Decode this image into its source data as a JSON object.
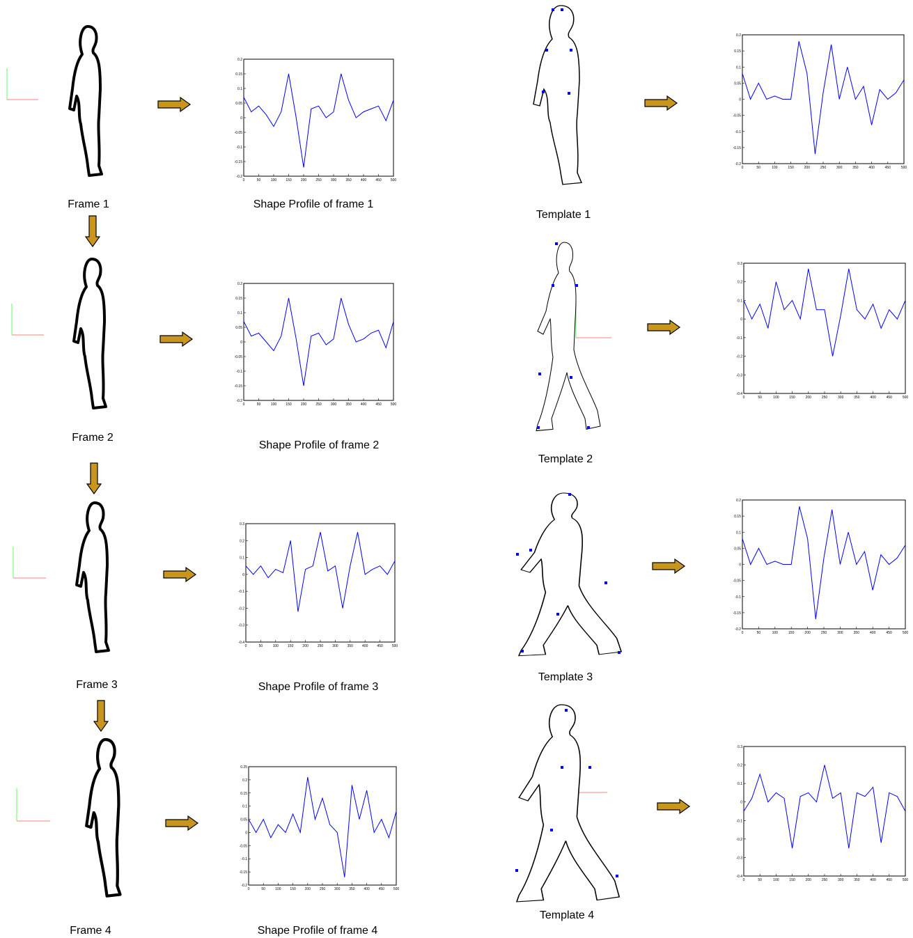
{
  "frames": [
    {
      "label": "Frame 1",
      "caption": "Shape Profile of frame 1"
    },
    {
      "label": "Frame 2",
      "caption": "Shape Profile of frame 2"
    },
    {
      "label": "Frame 3",
      "caption": "Shape Profile of frame 3"
    },
    {
      "label": "Frame 4",
      "caption": "Shape Profile of frame 4"
    }
  ],
  "templates": [
    {
      "label": "Template 1"
    },
    {
      "label": "Template 2"
    },
    {
      "label": "Template 3"
    },
    {
      "label": "Template 4"
    }
  ],
  "chart_data": [
    {
      "type": "line",
      "color": "#0000ff",
      "x": [
        0,
        25,
        50,
        75,
        100,
        125,
        150,
        175,
        200,
        225,
        250,
        275,
        300,
        325,
        350,
        375,
        400,
        425,
        450,
        475,
        500
      ],
      "values": [
        0.07,
        0.02,
        0.04,
        0.01,
        -0.03,
        0.02,
        0.15,
        0.0,
        -0.17,
        0.03,
        0.04,
        0.0,
        0.02,
        0.15,
        0.06,
        0.0,
        0.02,
        0.03,
        0.04,
        -0.01,
        0.06
      ],
      "xlim": [
        0,
        500
      ],
      "xticks": [
        0,
        50,
        100,
        150,
        200,
        250,
        300,
        350,
        400,
        450,
        500
      ],
      "ylim": [
        -0.2,
        0.2
      ],
      "yticks": [
        -0.2,
        -0.15,
        -0.1,
        -0.05,
        0,
        0.05,
        0.1,
        0.15,
        0.2
      ]
    },
    {
      "type": "line",
      "color": "#0000ff",
      "x": [
        0,
        25,
        50,
        75,
        100,
        125,
        150,
        175,
        200,
        225,
        250,
        275,
        300,
        325,
        350,
        375,
        400,
        425,
        450,
        475,
        500
      ],
      "values": [
        0.07,
        0.02,
        0.03,
        0.0,
        -0.03,
        0.02,
        0.15,
        0.01,
        -0.15,
        0.02,
        0.03,
        -0.01,
        0.01,
        0.15,
        0.06,
        0.0,
        0.01,
        0.03,
        0.04,
        -0.02,
        0.07
      ],
      "xlim": [
        0,
        500
      ],
      "xticks": [
        0,
        50,
        100,
        150,
        200,
        250,
        300,
        350,
        400,
        450,
        500
      ],
      "ylim": [
        -0.2,
        0.2
      ],
      "yticks": [
        -0.2,
        -0.15,
        -0.1,
        -0.05,
        0,
        0.05,
        0.1,
        0.15,
        0.2
      ]
    },
    {
      "type": "line",
      "color": "#0000ff",
      "x": [
        0,
        25,
        50,
        75,
        100,
        125,
        150,
        175,
        200,
        225,
        250,
        275,
        300,
        325,
        350,
        375,
        400,
        425,
        450,
        475,
        500
      ],
      "values": [
        0.05,
        0.0,
        0.05,
        -0.02,
        0.03,
        0.01,
        0.2,
        -0.22,
        0.03,
        0.05,
        0.25,
        0.02,
        0.05,
        -0.2,
        0.05,
        0.25,
        0.0,
        0.03,
        0.05,
        0.0,
        0.08
      ],
      "xlim": [
        0,
        500
      ],
      "xticks": [
        0,
        50,
        100,
        150,
        200,
        250,
        300,
        350,
        400,
        450,
        500
      ],
      "ylim": [
        -0.4,
        0.3
      ],
      "yticks": [
        -0.4,
        -0.3,
        -0.2,
        -0.1,
        0,
        0.1,
        0.2,
        0.3
      ]
    },
    {
      "type": "line",
      "color": "#0000ff",
      "x": [
        0,
        25,
        50,
        75,
        100,
        125,
        150,
        175,
        200,
        225,
        250,
        275,
        300,
        325,
        350,
        375,
        400,
        425,
        450,
        475,
        500
      ],
      "values": [
        0.05,
        0.0,
        0.05,
        -0.02,
        0.03,
        0.0,
        0.07,
        0.0,
        0.21,
        0.05,
        0.13,
        0.03,
        0.0,
        -0.17,
        0.18,
        0.05,
        0.16,
        0.0,
        0.05,
        -0.02,
        0.08
      ],
      "xlim": [
        0,
        500
      ],
      "xticks": [
        0,
        50,
        100,
        150,
        200,
        250,
        300,
        350,
        400,
        450,
        500
      ],
      "ylim": [
        -0.2,
        0.25
      ],
      "yticks": [
        -0.2,
        -0.15,
        -0.1,
        -0.05,
        0,
        0.05,
        0.1,
        0.15,
        0.2,
        0.25
      ]
    },
    {
      "type": "line",
      "color": "#0000ff",
      "x": [
        0,
        25,
        50,
        75,
        100,
        125,
        150,
        175,
        200,
        225,
        250,
        275,
        300,
        325,
        350,
        375,
        400,
        425,
        450,
        475,
        500
      ],
      "values": [
        0.08,
        0.0,
        0.05,
        0.0,
        0.01,
        0.0,
        0.0,
        0.18,
        0.08,
        -0.17,
        0.02,
        0.17,
        0.0,
        0.1,
        0.0,
        0.04,
        -0.08,
        0.03,
        0.0,
        0.02,
        0.06
      ],
      "xlim": [
        0,
        500
      ],
      "xticks": [
        0,
        50,
        100,
        150,
        200,
        250,
        300,
        350,
        400,
        450,
        500
      ],
      "ylim": [
        -0.2,
        0.2
      ],
      "yticks": [
        -0.2,
        -0.15,
        -0.1,
        -0.05,
        0,
        0.05,
        0.1,
        0.15,
        0.2
      ]
    },
    {
      "type": "line",
      "color": "#0000ff",
      "x": [
        0,
        25,
        50,
        75,
        100,
        125,
        150,
        175,
        200,
        225,
        250,
        275,
        300,
        325,
        350,
        375,
        400,
        425,
        450,
        475,
        500
      ],
      "values": [
        0.1,
        0.0,
        0.08,
        -0.05,
        0.2,
        0.05,
        0.1,
        0.0,
        0.27,
        0.05,
        0.05,
        -0.2,
        0.02,
        0.27,
        0.05,
        0.0,
        0.08,
        -0.05,
        0.05,
        0.0,
        0.1
      ],
      "xlim": [
        0,
        500
      ],
      "xticks": [
        0,
        50,
        100,
        150,
        200,
        250,
        300,
        350,
        400,
        450,
        500
      ],
      "ylim": [
        -0.4,
        0.3
      ],
      "yticks": [
        -0.4,
        -0.3,
        -0.2,
        -0.1,
        0,
        0.1,
        0.2,
        0.3
      ]
    },
    {
      "type": "line",
      "color": "#0000ff",
      "x": [
        0,
        25,
        50,
        75,
        100,
        125,
        150,
        175,
        200,
        225,
        250,
        275,
        300,
        325,
        350,
        375,
        400,
        425,
        450,
        475,
        500
      ],
      "values": [
        0.08,
        0.0,
        0.05,
        0.0,
        0.01,
        0.0,
        0.0,
        0.18,
        0.08,
        -0.17,
        0.02,
        0.17,
        0.0,
        0.1,
        0.0,
        0.04,
        -0.08,
        0.03,
        0.0,
        0.02,
        0.06
      ],
      "xlim": [
        0,
        500
      ],
      "xticks": [
        0,
        50,
        100,
        150,
        200,
        250,
        300,
        350,
        400,
        450,
        500
      ],
      "ylim": [
        -0.2,
        0.2
      ],
      "yticks": [
        -0.2,
        -0.15,
        -0.1,
        -0.05,
        0,
        0.05,
        0.1,
        0.15,
        0.2
      ]
    },
    {
      "type": "line",
      "color": "#0000ff",
      "x": [
        0,
        25,
        50,
        75,
        100,
        125,
        150,
        175,
        200,
        225,
        250,
        275,
        300,
        325,
        350,
        375,
        400,
        425,
        450,
        475,
        500
      ],
      "values": [
        -0.05,
        0.02,
        0.15,
        0.0,
        0.05,
        0.02,
        -0.25,
        0.03,
        0.05,
        0.0,
        0.2,
        0.02,
        0.05,
        -0.25,
        0.05,
        0.03,
        0.08,
        -0.22,
        0.05,
        0.03,
        -0.05
      ],
      "xlim": [
        0,
        500
      ],
      "xticks": [
        0,
        50,
        100,
        150,
        200,
        250,
        300,
        350,
        400,
        450,
        500
      ],
      "ylim": [
        -0.4,
        0.3
      ],
      "yticks": [
        -0.4,
        -0.3,
        -0.2,
        -0.1,
        0,
        0.1,
        0.2,
        0.3
      ]
    }
  ]
}
